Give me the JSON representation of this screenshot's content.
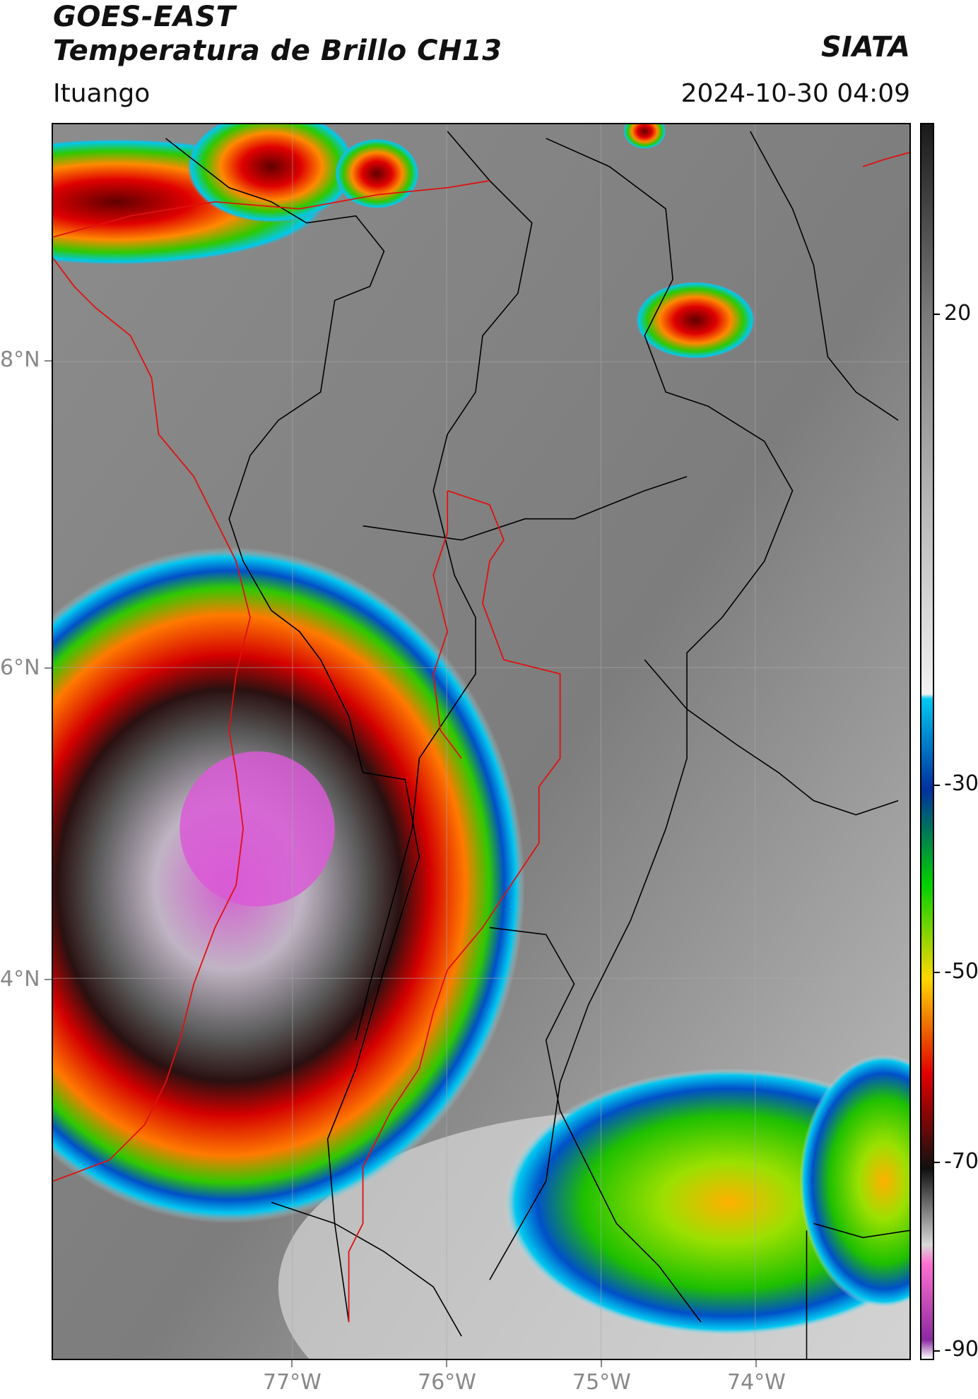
{
  "header": {
    "title_line1": "GOES-EAST",
    "title_line2": "Temperatura de Brillo CH13",
    "organization": "SIATA",
    "location": "Ituango",
    "datetime": "2024-10-30 04:09"
  },
  "map": {
    "lat_labels": [
      "8°N",
      "6°N",
      "4°N"
    ],
    "lon_labels": [
      "77°W",
      "76°W",
      "75°W",
      "74°W"
    ],
    "colors": {
      "cloud_top_cold": "#d45fd0",
      "convective_red": "#d40000",
      "convective_orange": "#ff7a00",
      "convective_green": "#2fc900",
      "convective_blue": "#0050c8",
      "cyan_edge": "#00c8f0",
      "boundary_highlight": "#e01010",
      "admin_borders": "#000000"
    }
  },
  "colorbar": {
    "labels": [
      "20",
      "-30",
      "-50",
      "-70",
      "-90"
    ],
    "stops": [
      {
        "value": 40,
        "color": "#1a1a1a"
      },
      {
        "value": 20,
        "color": "#7a7a7a"
      },
      {
        "value": -20,
        "color": "#f2f2f2"
      },
      {
        "value": -20.5,
        "color": "#00c8f0"
      },
      {
        "value": -30,
        "color": "#0030a0"
      },
      {
        "value": -40,
        "color": "#00d000"
      },
      {
        "value": -50,
        "color": "#ffd800"
      },
      {
        "value": -60,
        "color": "#e00000"
      },
      {
        "value": -70,
        "color": "#101010"
      },
      {
        "value": -78,
        "color": "#d8d8d8"
      },
      {
        "value": -80,
        "color": "#ff70d0"
      },
      {
        "value": -88,
        "color": "#8a2aa0"
      },
      {
        "value": -90,
        "color": "#ffffff"
      }
    ]
  }
}
